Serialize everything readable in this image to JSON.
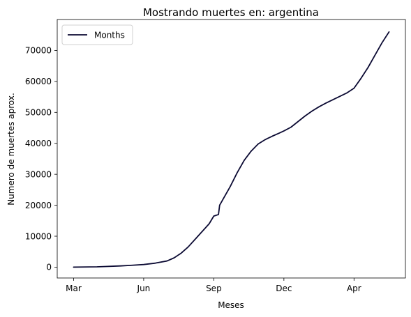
{
  "chart_data": {
    "type": "line",
    "title": "Mostrando muertes en: argentina",
    "xlabel": "Meses",
    "ylabel": "Numero de muertes aprox.",
    "x_tick_labels": [
      "Mar",
      "Jun",
      "Sep",
      "Dec",
      "Apr"
    ],
    "x_tick_positions": [
      0,
      3,
      6,
      9,
      12
    ],
    "xlim": [
      -0.7,
      14.2
    ],
    "ylim": [
      -3500,
      80000
    ],
    "y_ticks": [
      0,
      10000,
      20000,
      30000,
      40000,
      50000,
      60000,
      70000
    ],
    "y_tick_labels": [
      "0",
      "10000",
      "20000",
      "30000",
      "40000",
      "50000",
      "60000",
      "70000"
    ],
    "legend_position": "top-left",
    "grid": false,
    "series": [
      {
        "name": "Months",
        "color": "#0b0a33",
        "x": [
          0,
          1,
          2,
          2.5,
          3,
          3.5,
          4,
          4.3,
          4.6,
          4.9,
          5.2,
          5.5,
          5.8,
          6.0,
          6.2,
          6.25,
          6.4,
          6.7,
          7.0,
          7.3,
          7.6,
          7.9,
          8.2,
          8.5,
          8.8,
          9.0,
          9.3,
          9.6,
          9.9,
          10.2,
          10.5,
          10.8,
          11.1,
          11.4,
          11.7,
          12.0,
          12.3,
          12.6,
          12.9,
          13.2,
          13.5
        ],
        "y": [
          0,
          100,
          400,
          600,
          850,
          1300,
          2000,
          3000,
          4500,
          6500,
          9000,
          11500,
          14000,
          16500,
          17000,
          20000,
          22000,
          26000,
          30500,
          34500,
          37500,
          39800,
          41200,
          42300,
          43300,
          44000,
          45200,
          47000,
          48800,
          50400,
          51800,
          53000,
          54100,
          55200,
          56300,
          57800,
          61000,
          64500,
          68500,
          72500,
          76000
        ]
      }
    ]
  }
}
